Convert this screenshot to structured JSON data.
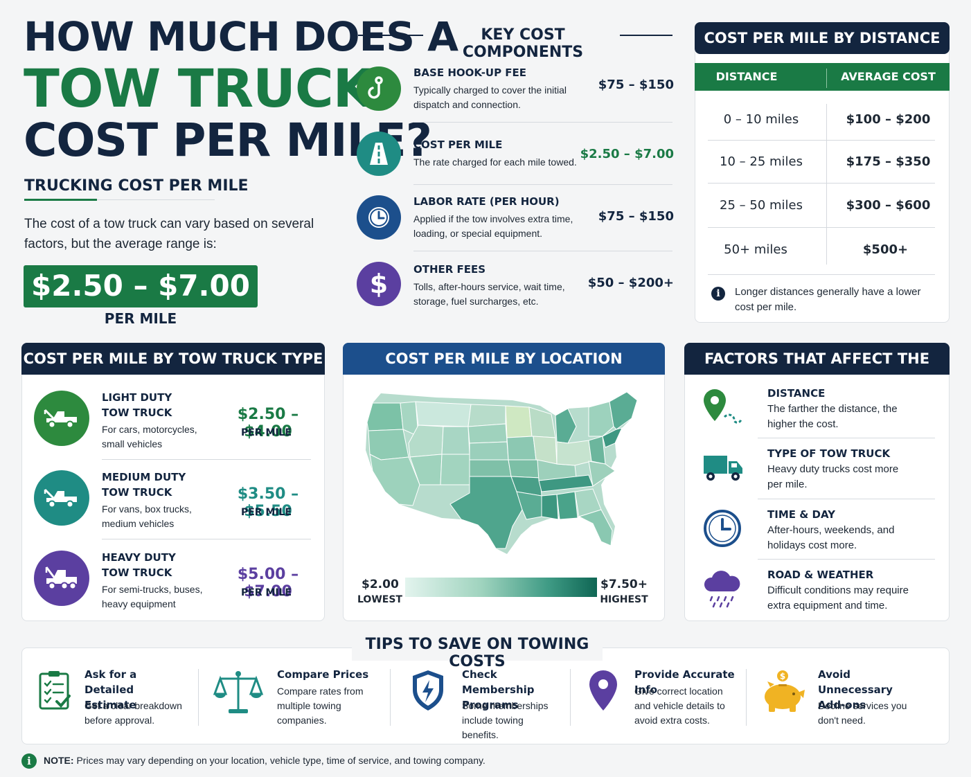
{
  "title": {
    "line1": "HOW MUCH DOES A",
    "line2": "TOW TRUCK",
    "line3": "COST PER MILE?",
    "subtitle": "TRUCKING COST PER MILE",
    "intro": "The cost of a tow truck can vary based on several factors, but the average range is:",
    "price": "$2.50 – $7.00",
    "price_unit": "PER MILE"
  },
  "colors": {
    "navy": "#13253f",
    "green": "#1a7a45",
    "teal": "#1f8c84",
    "purple": "#5b3fa0",
    "blue": "#1c4f8c"
  },
  "components": {
    "heading": "KEY COST COMPONENTS",
    "items": [
      {
        "title": "BASE HOOK-UP FEE",
        "desc": "Typically charged to cover the initial dispatch and connection.",
        "price": "$75 – $150",
        "icon": "hook-icon"
      },
      {
        "title": "COST PER MILE",
        "desc": "The rate charged for each mile towed.",
        "price": "$2.50 – $7.00",
        "icon": "road-icon"
      },
      {
        "title": "LABOR RATE (PER HOUR)",
        "desc": "Applied if the tow involves extra time, loading, or special equipment.",
        "price": "$75 – $150",
        "icon": "clock-icon"
      },
      {
        "title": "OTHER FEES",
        "desc": "Tolls, after-hours service, wait time, storage, fuel surcharges, etc.",
        "price": "$50 – $200+",
        "icon": "dollar-icon"
      }
    ]
  },
  "distance": {
    "heading": "COST PER MILE BY DISTANCE",
    "col1": "DISTANCE",
    "col2": "AVERAGE COST",
    "rows": [
      {
        "distance": "0 – 10 miles",
        "cost": "$100 – $200"
      },
      {
        "distance": "10 – 25 miles",
        "cost": "$175 – $350"
      },
      {
        "distance": "25 – 50 miles",
        "cost": "$300 – $600"
      },
      {
        "distance": "50+ miles",
        "cost": "$500+"
      }
    ],
    "note": "Longer distances generally have a lower cost per mile."
  },
  "truck_types": {
    "heading": "COST PER MILE BY TOW TRUCK TYPE",
    "items": [
      {
        "name1": "LIGHT DUTY",
        "name2": "TOW TRUCK",
        "desc": "For cars, motorcycles, small vehicles",
        "price": "$2.50 – $4.00",
        "unit": "PER MILE"
      },
      {
        "name1": "MEDIUM DUTY",
        "name2": "TOW TRUCK",
        "desc": "For vans, box trucks, medium vehicles",
        "price": "$3.50 – $5.50",
        "unit": "PER MILE"
      },
      {
        "name1": "HEAVY DUTY",
        "name2": "TOW TRUCK",
        "desc": "For semi-trucks, buses, heavy equipment",
        "price": "$5.00 – $7.00",
        "unit": "PER MILE"
      }
    ]
  },
  "location": {
    "heading": "COST PER MILE BY LOCATION (AVERAGE)",
    "low_value": "$2.00",
    "low_label": "LOWEST",
    "high_value": "$7.50+",
    "high_label": "HIGHEST"
  },
  "factors": {
    "heading": "FACTORS THAT AFFECT THE COST",
    "items": [
      {
        "title": "DISTANCE",
        "desc": "The farther the distance, the higher the cost.",
        "icon": "map-pin-icon"
      },
      {
        "title": "TYPE OF TOW TRUCK",
        "desc": "Heavy duty trucks cost more per mile.",
        "icon": "truck-icon"
      },
      {
        "title": "TIME & DAY",
        "desc": "After-hours, weekends, and holidays cost more.",
        "icon": "clock-icon"
      },
      {
        "title": "ROAD & WEATHER",
        "desc": "Difficult conditions may require extra equipment and time.",
        "icon": "rain-cloud-icon"
      }
    ]
  },
  "tips": {
    "heading": "TIPS TO SAVE ON TOWING COSTS",
    "items": [
      {
        "title": "Ask for a Detailed Estimate",
        "desc": "Get a clear breakdown before approval.",
        "icon": "clipboard-icon"
      },
      {
        "title": "Compare Prices",
        "desc": "Compare rates from multiple towing companies.",
        "icon": "scale-icon"
      },
      {
        "title": "Check Membership Programs",
        "desc": "Some memberships include towing benefits.",
        "icon": "shield-icon"
      },
      {
        "title": "Provide Accurate Info",
        "desc": "Give correct location and vehicle details to avoid extra costs.",
        "icon": "location-pin-icon"
      },
      {
        "title": "Avoid Unnecessary Add-ons",
        "desc": "Decline services you don't need.",
        "icon": "piggy-bank-icon"
      }
    ]
  },
  "note": {
    "label": "NOTE:",
    "text": "Prices may vary depending on your location, vehicle type, time of service, and towing company."
  }
}
